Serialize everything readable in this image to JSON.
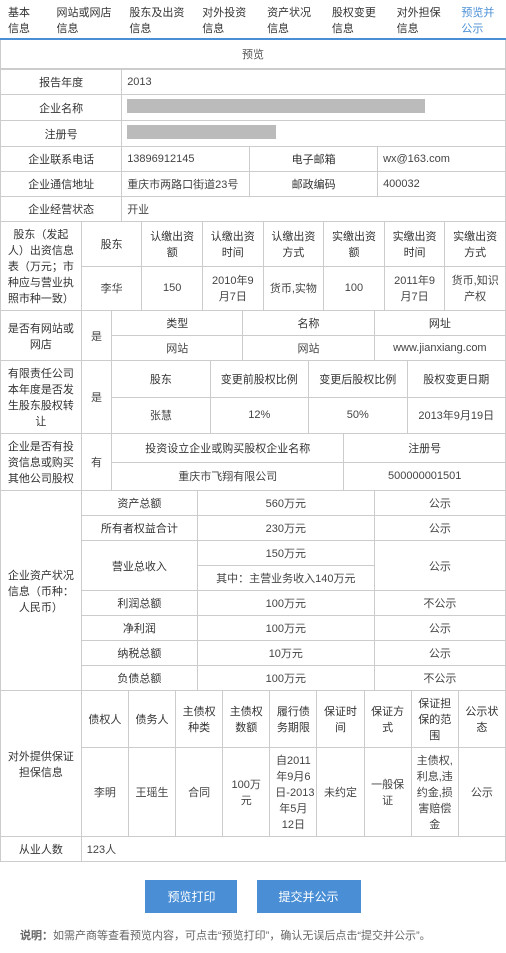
{
  "tabs": [
    "基本信息",
    "网站或网店信息",
    "股东及出资信息",
    "对外投资信息",
    "资产状况信息",
    "股权变更信息",
    "对外担保信息",
    "预览并公示"
  ],
  "preview_title": "预览",
  "basic": {
    "year_label": "报告年度",
    "year": "2013",
    "name_label": "企业名称",
    "regno_label": "注册号",
    "phone_label": "企业联系电话",
    "phone": "13896912145",
    "email_label": "电子邮箱",
    "email": "wx@163.com",
    "addr_label": "企业通信地址",
    "addr": "重庆市两路口街道23号",
    "zip_label": "邮政编码",
    "zip": "400032",
    "status_label": "企业经营状态",
    "status": "开业"
  },
  "inv": {
    "row_label": "股东（发起人）出资信息表（万元；市种应与营业执照市种一致）",
    "h": [
      "股东",
      "认缴出资额",
      "认缴出资时间",
      "认缴出资方式",
      "实缴出资额",
      "实缴出资时间",
      "实缴出资方式"
    ],
    "r": [
      "李华",
      "150",
      "2010年9月7日",
      "货币,实物",
      "100",
      "2011年9月7日",
      "货币,知识产权"
    ]
  },
  "site": {
    "row_label": "是否有网站或网店",
    "flag": "是",
    "h": [
      "类型",
      "名称",
      "网址"
    ],
    "r": [
      "网站",
      "网站",
      "www.jianxiang.com"
    ]
  },
  "eq": {
    "row_label": "有限责任公司本年度是否发生股东股权转让",
    "flag": "是",
    "h": [
      "股东",
      "变更前股权比例",
      "变更后股权比例",
      "股权变更日期"
    ],
    "r": [
      "张慧",
      "12%",
      "50%",
      "2013年9月19日"
    ]
  },
  "outinv": {
    "row_label": "企业是否有投资信息或购买其他公司股权",
    "flag": "有",
    "h": [
      "投资设立企业或购买股权企业名称",
      "注册号"
    ],
    "r": [
      "重庆市飞翔有限公司",
      "500000001501"
    ]
  },
  "asset": {
    "row_label": "企业资产状况信息（币种：人民币）",
    "rows": [
      {
        "k": "资产总额",
        "v": "560万元",
        "p": "公示",
        "c": null
      },
      {
        "k": "所有者权益合计",
        "v": "230万元",
        "p": "公示",
        "c": null
      },
      {
        "k": "营业总收入",
        "v": "150万元",
        "p": "公示",
        "c": "其中：主营业务收入140万元"
      },
      {
        "k": "利润总额",
        "v": "100万元",
        "p": "不公示",
        "c": null
      },
      {
        "k": "净利润",
        "v": "100万元",
        "p": "公示",
        "c": null
      },
      {
        "k": "纳税总额",
        "v": "10万元",
        "p": "公示",
        "c": null
      },
      {
        "k": "负债总额",
        "v": "100万元",
        "p": "不公示",
        "c": null
      }
    ]
  },
  "gua": {
    "row_label": "对外提供保证担保信息",
    "h": [
      "债权人",
      "债务人",
      "主债权种类",
      "主债权数额",
      "履行债务期限",
      "保证时间",
      "保证方式",
      "保证担保的范围",
      "公示状态"
    ],
    "r": [
      "李明",
      "王瑶生",
      "合同",
      "100万元",
      "自2011年9月6日-2013年5月12日",
      "未约定",
      "一般保证",
      "主债权,利息,违约金,损害赔偿金",
      "公示"
    ]
  },
  "emp": {
    "label": "从业人数",
    "val": "123人"
  },
  "btn1": "预览打印",
  "btn2": "提交并公示",
  "note_label": "说明：",
  "note": "如需产商等查看预览内容，可点击“预览打印”，确认无误后点击“提交并公示”。"
}
